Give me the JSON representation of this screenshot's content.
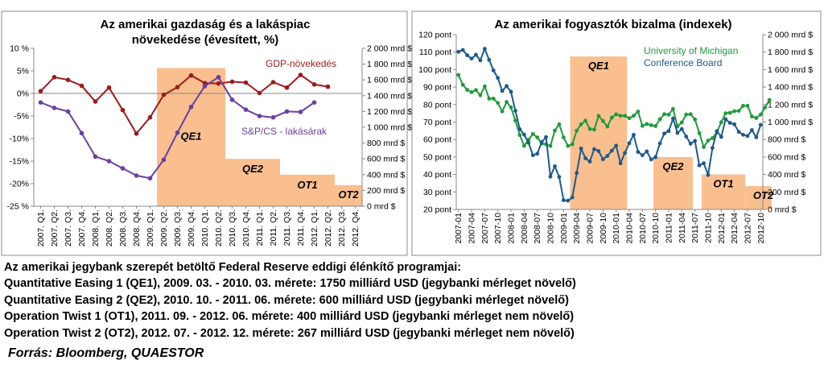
{
  "chart_data": [
    {
      "type": "line",
      "title": "Az amerikai gazdaság és a lakáspiac növekedése (évesített, %)",
      "title_lines": [
        "Az amerikai gazdaság és a lakáspiac",
        "növekedése (évesített, %)"
      ],
      "categories": [
        "2007. Q1.",
        "2007. Q2.",
        "2007. Q3.",
        "2007. Q4.",
        "2008. Q1.",
        "2008. Q2.",
        "2008. Q3.",
        "2008. Q4.",
        "2009. Q1.",
        "2009. Q2.",
        "2009. Q3.",
        "2009. Q4.",
        "2010. Q1.",
        "2010. Q2.",
        "2010. Q3.",
        "2010. Q4.",
        "2011. Q1.",
        "2011. Q2.",
        "2011. Q3.",
        "2011. Q4.",
        "2012. Q1.",
        "2012. Q2.",
        "2012. Q3.",
        "2012. Q4."
      ],
      "y_left": {
        "min": -25,
        "max": 10,
        "step": 5,
        "ticks": [
          "10 %",
          "5%",
          "0%",
          "-5%",
          "-10%",
          "-15%",
          "-20%",
          "-25 %"
        ]
      },
      "y_right": {
        "min": 0,
        "max": 2000,
        "step": 200,
        "ticks": [
          "2 000 mrd $",
          "1 800 mrd $",
          "1 600 mrd $",
          "1 400 mrd $",
          "1 200 mrd $",
          "1 000 mrd $",
          "800 mrd $",
          "600 mrd $",
          "400 mrd $",
          "200 mrd $",
          "0 mrd $"
        ]
      },
      "series": [
        {
          "name": "GDP-növekedés",
          "color": "#9b1b1b",
          "values": [
            0.5,
            3.6,
            3.0,
            1.7,
            -1.8,
            1.3,
            -3.7,
            -8.9,
            -5.3,
            -0.3,
            1.4,
            4.0,
            2.3,
            2.2,
            2.6,
            2.4,
            0.1,
            2.5,
            1.3,
            4.1,
            2.0,
            1.5,
            null,
            null
          ]
        },
        {
          "name": "S&P/CS - lakásárak",
          "color": "#6b3fa0",
          "values": [
            -2.0,
            -3.2,
            -4.0,
            -8.8,
            -14.0,
            -15.0,
            -16.6,
            -18.2,
            -18.8,
            -14.7,
            -8.7,
            -3.0,
            1.6,
            3.6,
            -1.4,
            -3.6,
            -5.0,
            -5.3,
            -4.0,
            -4.1,
            -2.0,
            null,
            null,
            null
          ]
        }
      ],
      "programs": [
        {
          "label": "QE1",
          "value": 1750,
          "start": "2009. Q2.",
          "end": "2010. Q2."
        },
        {
          "label": "QE2",
          "value": 600,
          "start": "2010. Q3.",
          "end": "2011. Q2."
        },
        {
          "label": "OT1",
          "value": 400,
          "start": "2011. Q3.",
          "end": "2012. Q2."
        },
        {
          "label": "OT2",
          "value": 267,
          "start": "2012. Q3.",
          "end": "2012. Q4."
        }
      ],
      "program_color": "#f9bf8f",
      "grid": false
    },
    {
      "type": "line",
      "title": "Az amerikai fogyasztók bizalma (indexek)",
      "title_lines": [
        "Az amerikai fogyasztók bizalma (indexek)"
      ],
      "x_start": "2007-01",
      "x_end": "2012-10",
      "x_labels": [
        "2007-01",
        "2007-04",
        "2007-07",
        "2007-10",
        "2008-01",
        "2008-04",
        "2008-07",
        "2008-10",
        "2009-01",
        "2009-04",
        "2009-07",
        "2009-10",
        "2010-01",
        "2010-04",
        "2010-07",
        "2010-10",
        "2011-01",
        "2011-04",
        "2011-07",
        "2011-10",
        "2012-01",
        "2012-04",
        "2012-07",
        "2012-10"
      ],
      "y_left": {
        "min": 20,
        "max": 120,
        "step": 10,
        "ticks": [
          "120 pont",
          "110 pont",
          "100 pont",
          "90 pont",
          "80 pont",
          "70 pont",
          "60 pont",
          "50 pont",
          "40 pont",
          "30 pont",
          "20 pont"
        ]
      },
      "y_right": {
        "min": 0,
        "max": 2000,
        "step": 200,
        "ticks": [
          "2 000 mrd $",
          "1 800 mrd $",
          "1 600 mrd $",
          "1 400 mrd $",
          "1 200 mrd $",
          "1 000 mrd $",
          "800 mrd $",
          "600 mrd $",
          "400 mrd $",
          "200 mrd $",
          "0 mrd $"
        ]
      },
      "series": [
        {
          "name": "University of Michigan",
          "color": "#1f9a3a",
          "values": [
            96.9,
            91.3,
            88.4,
            87.1,
            88.3,
            85.3,
            90.4,
            83.4,
            83.4,
            80.9,
            76.1,
            81.5,
            78.4,
            70.8,
            62.6,
            56.4,
            59.8,
            63.2,
            61.2,
            57.7,
            57.3,
            56.3,
            65.1,
            68.7,
            61.2,
            56.3,
            57.3,
            65.1,
            68.7,
            70.8,
            66.0,
            65.7,
            73.5,
            70.6,
            67.4,
            72.5,
            74.4,
            73.6,
            73.6,
            72.2,
            73.6,
            76.0,
            67.8,
            68.9,
            68.2,
            67.7,
            71.6,
            74.5,
            74.2,
            77.5,
            67.5,
            69.8,
            74.3,
            74.5,
            71.5,
            63.7,
            55.7,
            59.4,
            60.8,
            64.1,
            69.9,
            75.0,
            75.3,
            76.2,
            76.4,
            79.3,
            79.3,
            73.2,
            72.3,
            74.3,
            78.3,
            82.6
          ]
        },
        {
          "name": "Conference Board",
          "color": "#1c5a8a",
          "values": [
            110.2,
            111.2,
            108.2,
            106.3,
            108.5,
            105.3,
            111.9,
            105.6,
            99.5,
            95.2,
            87.8,
            90.6,
            87.3,
            76.4,
            65.9,
            62.8,
            58.1,
            51.0,
            51.9,
            58.5,
            61.4,
            38.8,
            44.7,
            38.6,
            25.3,
            25.0,
            26.9,
            40.8,
            54.8,
            49.3,
            47.4,
            54.5,
            53.4,
            48.7,
            50.6,
            53.6,
            56.5,
            46.4,
            52.3,
            57.9,
            62.7,
            52.9,
            51.0,
            53.2,
            48.6,
            49.9,
            57.8,
            63.4,
            64.8,
            72.0,
            63.8,
            66.0,
            61.7,
            57.6,
            59.2,
            45.2,
            46.4,
            39.8,
            55.2,
            64.8,
            61.5,
            71.6,
            69.5,
            68.7,
            64.4,
            62.7,
            62.0,
            65.4,
            61.3,
            68.4,
            null,
            null
          ]
        }
      ],
      "programs": [
        {
          "label": "QE1",
          "value": 1750,
          "start": "2009-03",
          "end": "2010-03"
        },
        {
          "label": "QE2",
          "value": 600,
          "start": "2010-10",
          "end": "2011-06"
        },
        {
          "label": "OT1",
          "value": 400,
          "start": "2011-09",
          "end": "2012-06"
        },
        {
          "label": "OT2",
          "value": 267,
          "start": "2012-07",
          "end": "2012-12"
        }
      ],
      "program_color": "#f9bf8f",
      "grid": false
    }
  ],
  "notes": [
    "Az amerikai jegybank szerepét betöltő Federal Reserve eddigi élénkítő programjai:",
    "Quantitative Easing 1 (QE1), 2009. 03. - 2010. 03. mérete: 1750 milliárd USD (jegybanki mérleget növelő)",
    "Quantitative Easing 2 (QE2), 2010. 10. - 2011. 06. mérete: 600 milliárd USD (jegybanki mérleget növelő)",
    "Operation Twist 1 (OT1), 2011. 09. - 2012. 06. mérete: 400 milliárd USD (jegybanki mérleget nem növelő)",
    "Operation Twist 2 (OT2), 2012. 07. - 2012. 12. mérete: 267 milliárd USD (jegybanki mérleget nem növelő)"
  ],
  "source": "Forrás: Bloomberg, QUAESTOR"
}
